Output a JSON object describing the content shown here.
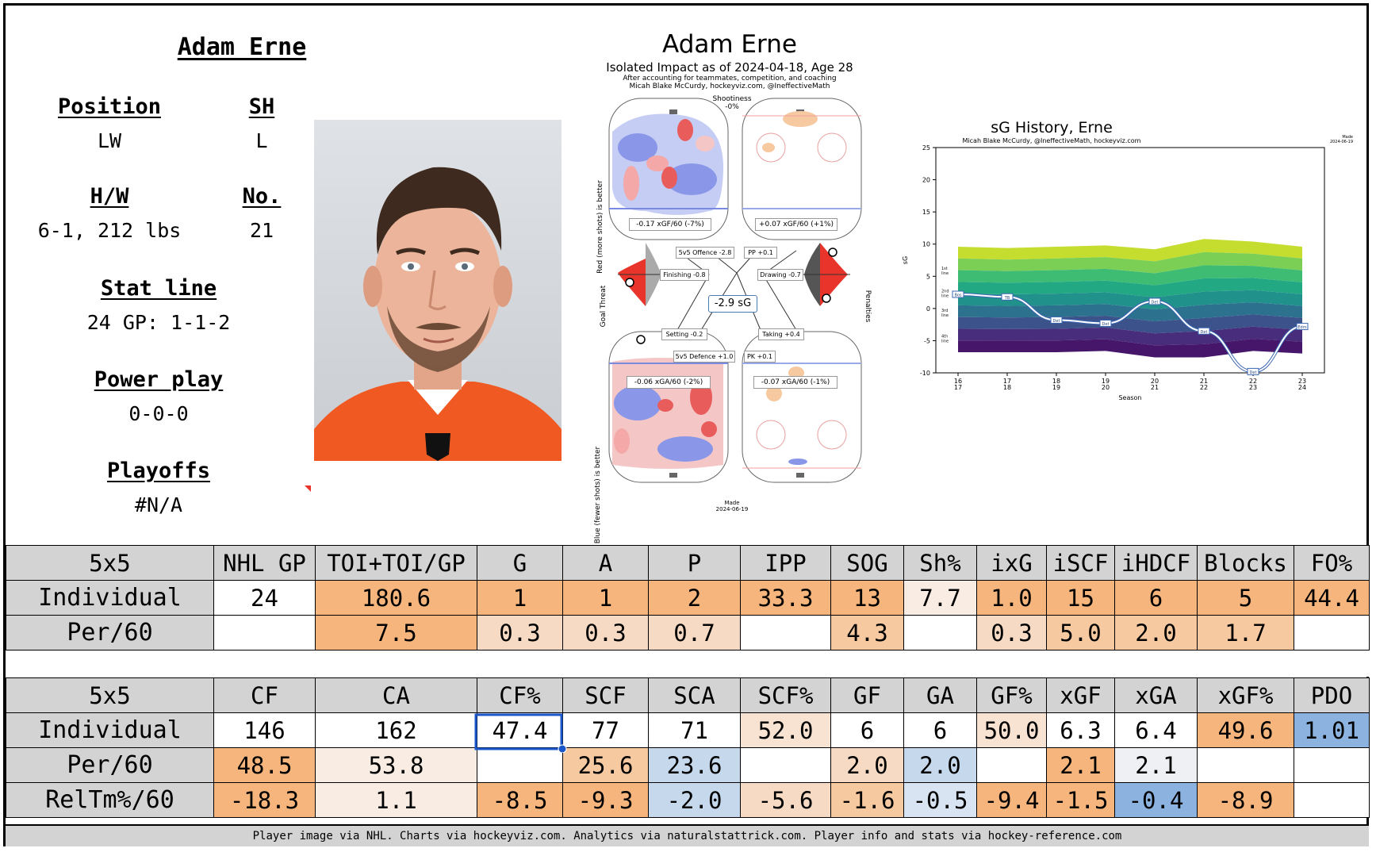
{
  "player": {
    "name": "Adam Erne",
    "position_label": "Position",
    "position": "LW",
    "sh_label": "SH",
    "sh": "L",
    "hw_label": "H/W",
    "hw": "6-1, 212 lbs",
    "no_label": "No.",
    "no": "21",
    "statline_label": "Stat line",
    "statline": "24 GP: 1-1-2",
    "pp_label": "Power play",
    "pp": "0-0-0",
    "playoffs_label": "Playoffs",
    "playoffs": "#N/A"
  },
  "impact": {
    "title": "Adam Erne",
    "subtitle": "Isolated Impact as of 2024-04-18, Age 28",
    "note1": "After accounting for teammates, competition, and coaching",
    "note2": "Micah Blake McCurdy, hockeyviz.com, @IneffectiveMath",
    "shootiness_label": "Shootiness",
    "shootiness": "-0%",
    "left_axis_top": "Red (more shots) is better",
    "left_axis_bottom": "Blue (fewer shots) is better",
    "goal_threat": "Goal Threat",
    "penalties": "Penalties",
    "xgf_5v5": "-0.17 xGF/60 (-7%)",
    "xgf_pp": "+0.07 xGF/60 (+1%)",
    "xga_5v5": "-0.06 xGA/60 (-2%)",
    "xga_pk": "-0.07 xGA/60 (-1%)",
    "sg_total": "-2.9 sG",
    "o5v5": "5v5 Offence -2.8",
    "pp_val": "PP +0.1",
    "finishing": "Finishing -0.8",
    "drawing": "Drawing -0.7",
    "setting": "Setting -0.2",
    "taking": "Taking +0.4",
    "d5v5": "5v5 Defence +1.0",
    "pk_val": "PK +0.1",
    "made_label": "Made",
    "made_date": "2024-06-19"
  },
  "chart_data": {
    "type": "area",
    "title": "sG History, Erne",
    "subtitle": "Micah Blake McCurdy, @IneffectiveMath, hockeyviz.com",
    "corner_note": "Made\n2024-06-19",
    "xlabel": "Season",
    "ylabel": "sG",
    "ylim": [
      -10,
      25
    ],
    "yticks": [
      -10,
      -5,
      0,
      5,
      10,
      15,
      20,
      25
    ],
    "categories": [
      "16\n17",
      "17\n18",
      "18\n19",
      "19\n20",
      "20\n21",
      "21\n22",
      "22\n23",
      "23\n24"
    ],
    "band_labels": [
      "1st line",
      "2nd line",
      "3rd line",
      "4th line"
    ],
    "band_colors": [
      "#c5dd2e",
      "#7ccf55",
      "#3fbc73",
      "#23a884",
      "#21918c",
      "#2c728e",
      "#3b528b",
      "#472d7b",
      "#46166b"
    ],
    "series": [
      {
        "name": "Erne",
        "values": [
          2.2,
          1.8,
          -1.8,
          -2.3,
          1.1,
          -3.5,
          -9.8,
          -2.8
        ]
      }
    ],
    "point_labels": [
      "Bos",
      "TB",
      "Det",
      "Det",
      "Det",
      "Det",
      "Det",
      "Edm"
    ],
    "grid": false
  },
  "table1": {
    "headers": [
      "5x5",
      "NHL GP",
      "TOI+TOI/GP",
      "G",
      "A",
      "P",
      "IPP",
      "SOG",
      "Sh%",
      "ixG",
      "iSCF",
      "iHDCF",
      "Blocks",
      "FO%"
    ],
    "rows": [
      {
        "label": "Individual",
        "values": [
          "24",
          "180.6",
          "1",
          "1",
          "2",
          "33.3",
          "13",
          "7.7",
          "1.0",
          "15",
          "6",
          "5",
          "44.4"
        ]
      },
      {
        "label": "Per/60",
        "values": [
          "",
          "7.5",
          "0.3",
          "0.3",
          "0.7",
          "",
          "4.3",
          "",
          "0.3",
          "5.0",
          "2.0",
          "1.7",
          ""
        ]
      }
    ],
    "colors": [
      [
        "#ffffff",
        "#f5b57c",
        "#f5b57c",
        "#f5b57c",
        "#f5b57c",
        "#f5b57c",
        "#f5b57c",
        "#f8ece3",
        "#f5b57c",
        "#f5b57c",
        "#f5b57c",
        "#f5b57c",
        "#f5b57c"
      ],
      [
        "#ffffff",
        "#f5b57c",
        "#f6dac4",
        "#f6dac4",
        "#f6dac4",
        "#ffffff",
        "#f6c9a1",
        "#ffffff",
        "#f6dac4",
        "#f6c9a1",
        "#f6c9a1",
        "#f6c9a1",
        "#ffffff"
      ]
    ]
  },
  "table2": {
    "headers": [
      "5x5",
      "CF",
      "CA",
      "CF%",
      "SCF",
      "SCA",
      "SCF%",
      "GF",
      "GA",
      "GF%",
      "xGF",
      "xGA",
      "xGF%",
      "PDO"
    ],
    "rows": [
      {
        "label": "Individual",
        "values": [
          "146",
          "162",
          "47.4",
          "77",
          "71",
          "52.0",
          "6",
          "6",
          "50.0",
          "6.3",
          "6.4",
          "49.6",
          "1.01"
        ]
      },
      {
        "label": "Per/60",
        "values": [
          "48.5",
          "53.8",
          "",
          "25.6",
          "23.6",
          "",
          "2.0",
          "2.0",
          "",
          "2.1",
          "2.1",
          "",
          ""
        ]
      },
      {
        "label": "RelTm%/60",
        "values": [
          "-18.3",
          "1.1",
          "-8.5",
          "-9.3",
          "-2.0",
          "-5.6",
          "-1.6",
          "-0.5",
          "-9.4",
          "-1.5",
          "-0.4",
          "-8.9",
          ""
        ]
      }
    ],
    "colors": [
      [
        "#ffffff",
        "#ffffff",
        "#ffffff",
        "#ffffff",
        "#ffffff",
        "#f8e2d2",
        "#ffffff",
        "#ffffff",
        "#f8e2d2",
        "#ffffff",
        "#ffffff",
        "#f5b57c",
        "#8cb2df"
      ],
      [
        "#f5b57c",
        "#f8ece3",
        "#ffffff",
        "#f6c9a1",
        "#c6d8ec",
        "#ffffff",
        "#f6dac4",
        "#c6d8ec",
        "#ffffff",
        "#f5b57c",
        "#eef0f4",
        "#ffffff",
        "#ffffff"
      ],
      [
        "#f5b57c",
        "#f8ece3",
        "#f5b57c",
        "#f5b57c",
        "#c6d8ec",
        "#f6dac4",
        "#f6c9a1",
        "#d8e4f1",
        "#f5b57c",
        "#f5b57c",
        "#8cb2df",
        "#f5b57c",
        "#ffffff"
      ]
    ]
  },
  "footer": "Player image via NHL. Charts via hockeyviz.com. Analytics via naturalstattrick.com. Player info and stats via hockey-reference.com"
}
